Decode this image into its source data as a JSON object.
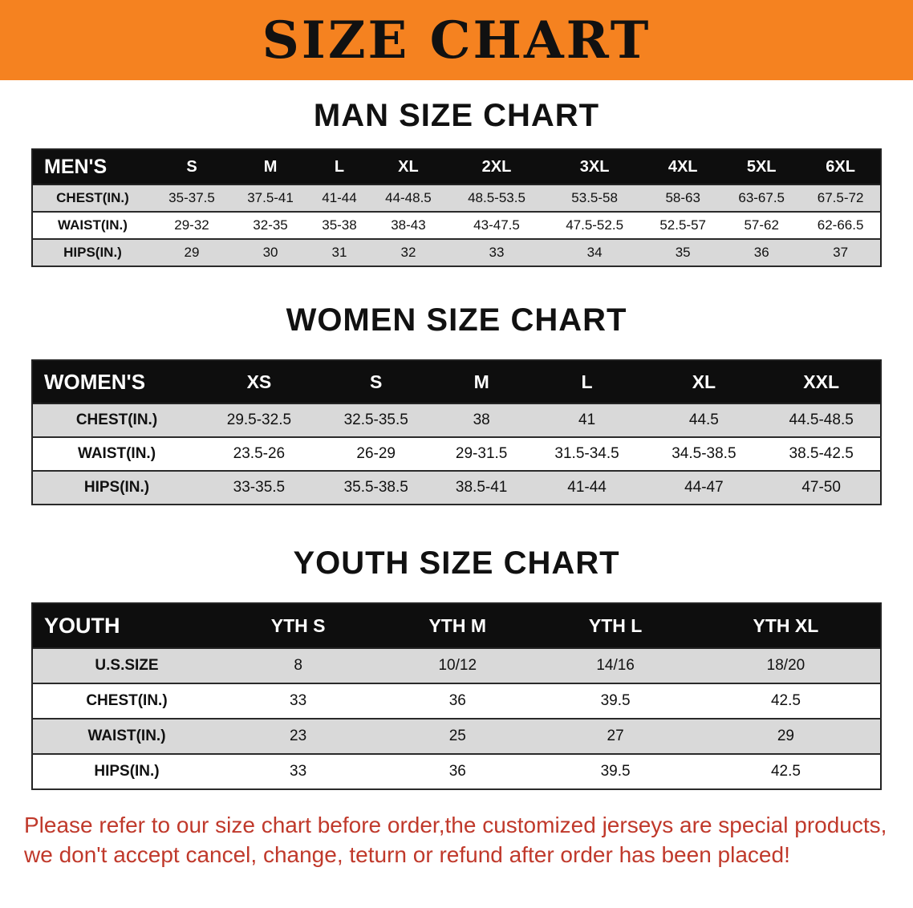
{
  "banner": {
    "title": "SIZE CHART"
  },
  "sections": [
    {
      "title": "MAN SIZE CHART",
      "table": {
        "header_label": "MEN'S",
        "columns": [
          "S",
          "M",
          "L",
          "XL",
          "2XL",
          "3XL",
          "4XL",
          "5XL",
          "6XL"
        ],
        "rows": [
          {
            "label": "CHEST(IN.)",
            "values": [
              "35-37.5",
              "37.5-41",
              "41-44",
              "44-48.5",
              "48.5-53.5",
              "53.5-58",
              "58-63",
              "63-67.5",
              "67.5-72"
            ]
          },
          {
            "label": "WAIST(IN.)",
            "values": [
              "29-32",
              "32-35",
              "35-38",
              "38-43",
              "43-47.5",
              "47.5-52.5",
              "52.5-57",
              "57-62",
              "62-66.5"
            ]
          },
          {
            "label": "HIPS(IN.)",
            "values": [
              "29",
              "30",
              "31",
              "32",
              "33",
              "34",
              "35",
              "36",
              "37"
            ]
          }
        ]
      }
    },
    {
      "title": "WOMEN SIZE CHART",
      "table": {
        "header_label": "WOMEN'S",
        "columns": [
          "XS",
          "S",
          "M",
          "L",
          "XL",
          "XXL"
        ],
        "rows": [
          {
            "label": "CHEST(IN.)",
            "values": [
              "29.5-32.5",
              "32.5-35.5",
              "38",
              "41",
              "44.5",
              "44.5-48.5"
            ]
          },
          {
            "label": "WAIST(IN.)",
            "values": [
              "23.5-26",
              "26-29",
              "29-31.5",
              "31.5-34.5",
              "34.5-38.5",
              "38.5-42.5"
            ]
          },
          {
            "label": "HIPS(IN.)",
            "values": [
              "33-35.5",
              "35.5-38.5",
              "38.5-41",
              "41-44",
              "44-47",
              "47-50"
            ]
          }
        ]
      }
    },
    {
      "title": "YOUTH SIZE CHART",
      "table": {
        "header_label": "YOUTH",
        "columns": [
          "YTH S",
          "YTH M",
          "YTH L",
          "YTH XL"
        ],
        "rows": [
          {
            "label": "U.S.SIZE",
            "values": [
              "8",
              "10/12",
              "14/16",
              "18/20"
            ]
          },
          {
            "label": "CHEST(IN.)",
            "values": [
              "33",
              "36",
              "39.5",
              "42.5"
            ]
          },
          {
            "label": "WAIST(IN.)",
            "values": [
              "23",
              "25",
              "27",
              "29"
            ]
          },
          {
            "label": "HIPS(IN.)",
            "values": [
              "33",
              "36",
              "39.5",
              "42.5"
            ]
          }
        ]
      }
    }
  ],
  "footer": {
    "line1": "Please refer to our size chart before order,the customized jerseys are special products,",
    "line2": "we don't accept cancel, change, teturn or refund after order has been placed!"
  },
  "colors": {
    "banner_orange": "#f58220",
    "header_black": "#0e0e0e",
    "row_gray": "#d9d9d9",
    "note_red": "#c0392b"
  }
}
